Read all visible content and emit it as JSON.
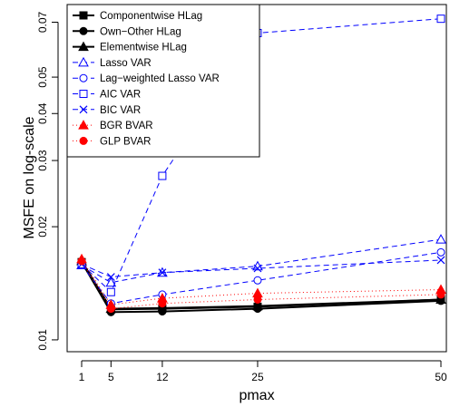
{
  "chart_data": {
    "type": "line",
    "xlabel": "pmax",
    "ylabel": "MSFE on log-scale",
    "x": [
      1,
      5,
      12,
      25,
      50
    ],
    "xticks": [
      1,
      5,
      12,
      25,
      50
    ],
    "yticks": [
      0.01,
      0.02,
      0.03,
      0.04,
      0.05,
      0.07
    ],
    "ytick_labels": [
      "0.01",
      "0.02",
      "0.03",
      "0.04",
      "0.05",
      "0.07"
    ],
    "ylim": [
      0.0093,
      0.078
    ],
    "yscale": "log",
    "grid": false,
    "legend": "top-left",
    "series": [
      {
        "name": "Componentwise HLag",
        "values": [
          0.0161,
          0.01205,
          0.0121,
          0.01225,
          0.0128
        ],
        "color": "#000000",
        "marker": "square-filled",
        "dash": "solid",
        "width": 2
      },
      {
        "name": "Own−Other HLag",
        "values": [
          0.0161,
          0.01185,
          0.0119,
          0.0121,
          0.0127
        ],
        "color": "#000000",
        "marker": "circle-filled",
        "dash": "solid",
        "width": 2
      },
      {
        "name": "Elementwise HLag",
        "values": [
          0.0162,
          0.0121,
          0.01215,
          0.0123,
          0.0128
        ],
        "color": "#000000",
        "marker": "triangle-filled",
        "dash": "solid",
        "width": 2
      },
      {
        "name": "Lasso VAR",
        "values": [
          0.0158,
          0.0142,
          0.0151,
          0.0157,
          0.0185
        ],
        "color": "#0000ff",
        "marker": "triangle-open",
        "dash": "dashed",
        "width": 1
      },
      {
        "name": "Lag−weighted Lasso VAR",
        "values": [
          0.0158,
          0.0125,
          0.0132,
          0.0144,
          0.0171
        ],
        "color": "#0000ff",
        "marker": "circle-open",
        "dash": "dashed",
        "width": 1
      },
      {
        "name": "AIC VAR",
        "values": [
          0.0159,
          0.0134,
          0.0273,
          0.0655,
          0.0715
        ],
        "color": "#0000ff",
        "marker": "square-open",
        "dash": "dashed",
        "width": 1
      },
      {
        "name": "BIC VAR",
        "values": [
          0.0159,
          0.0147,
          0.0151,
          0.0155,
          0.0163
        ],
        "color": "#0000ff",
        "marker": "x",
        "dash": "dashed",
        "width": 1
      },
      {
        "name": "BGR BVAR",
        "values": [
          0.0164,
          0.0124,
          0.0129,
          0.0133,
          0.0136
        ],
        "color": "#ff0000",
        "marker": "triangle-filled",
        "dash": "dotted",
        "width": 1
      },
      {
        "name": "GLP BVAR",
        "values": [
          0.0162,
          0.0121,
          0.0125,
          0.0128,
          0.0132
        ],
        "color": "#ff0000",
        "marker": "circle-filled",
        "dash": "dotted",
        "width": 1
      }
    ]
  }
}
